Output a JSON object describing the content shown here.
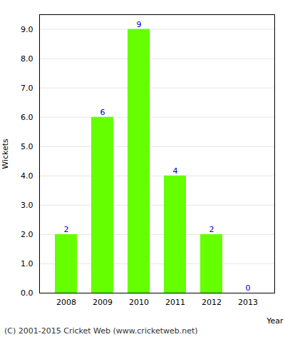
{
  "chart_data": {
    "type": "bar",
    "categories": [
      "2008",
      "2009",
      "2010",
      "2011",
      "2012",
      "2013"
    ],
    "values": [
      2,
      6,
      9,
      4,
      2,
      0
    ],
    "color": "#66ff00",
    "xlabel": "Year",
    "ylabel": "Wickets",
    "ylim": [
      0,
      9.5
    ],
    "yticks": [
      {
        "value": 0,
        "label": "0.0"
      },
      {
        "value": 1,
        "label": "1.0"
      },
      {
        "value": 2,
        "label": "2.0"
      },
      {
        "value": 3,
        "label": "3.0"
      },
      {
        "value": 4,
        "label": "4.0"
      },
      {
        "value": 5,
        "label": "5.0"
      },
      {
        "value": 6,
        "label": "6.0"
      },
      {
        "value": 7,
        "label": "7.0"
      },
      {
        "value": 8,
        "label": "8.0"
      },
      {
        "value": 9,
        "label": "9.0"
      }
    ],
    "grid": true,
    "data_labels": true,
    "annotations": [
      "(C) 2001-2015 Cricket Web (www.cricketweb.net)"
    ]
  }
}
